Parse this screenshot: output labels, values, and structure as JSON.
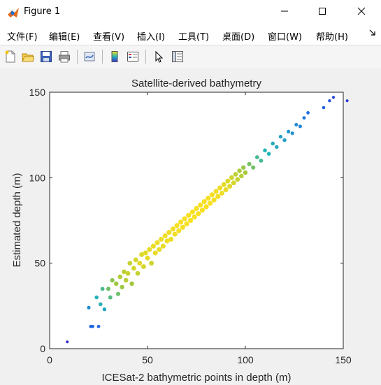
{
  "window": {
    "title": "Figure 1",
    "minimize_icon": "minimize-icon",
    "maximize_icon": "maximize-icon",
    "close_icon": "close-icon"
  },
  "menu": {
    "items": [
      "文件(F)",
      "编辑(E)",
      "查看(V)",
      "插入(I)",
      "工具(T)",
      "桌面(D)",
      "窗口(W)",
      "帮助(H)"
    ],
    "overflow_icon": "dock-arrow-icon"
  },
  "toolbar": {
    "icons": [
      "new-figure-icon",
      "open-file-icon",
      "save-icon",
      "print-icon",
      "link-plot-icon",
      "colorbar-icon",
      "legend-icon",
      "pointer-icon",
      "property-editor-icon"
    ]
  },
  "colors": {
    "low_density": "#3a2fd6",
    "high_density": "#f9e022",
    "axes_background": "#ffffff",
    "figure_background": "#f0f0f0"
  },
  "chart_data": {
    "type": "scatter",
    "title": "Satellite-derived bathymetry",
    "xlabel": "ICESat-2 bathymetric points in depth (m)",
    "ylabel": "Estimated depth (m)",
    "xlim": [
      0,
      150
    ],
    "ylim": [
      0,
      150
    ],
    "xticks": [
      0,
      50,
      100,
      150
    ],
    "yticks": [
      0,
      50,
      100,
      150
    ],
    "grid": false,
    "colormap": "parula (density-colored)",
    "points": [
      [
        9,
        4
      ],
      [
        20,
        24
      ],
      [
        21,
        13
      ],
      [
        22,
        13
      ],
      [
        24,
        30
      ],
      [
        25,
        13
      ],
      [
        26,
        26
      ],
      [
        27,
        35
      ],
      [
        28,
        23
      ],
      [
        30,
        35
      ],
      [
        31,
        30
      ],
      [
        32,
        40
      ],
      [
        34,
        38
      ],
      [
        35,
        32
      ],
      [
        36,
        42
      ],
      [
        37,
        36
      ],
      [
        38,
        45
      ],
      [
        39,
        40
      ],
      [
        40,
        44
      ],
      [
        41,
        50
      ],
      [
        42,
        38
      ],
      [
        43,
        47
      ],
      [
        44,
        52
      ],
      [
        45,
        44
      ],
      [
        46,
        50
      ],
      [
        47,
        55
      ],
      [
        48,
        48
      ],
      [
        49,
        56
      ],
      [
        50,
        53
      ],
      [
        51,
        58
      ],
      [
        52,
        50
      ],
      [
        53,
        60
      ],
      [
        54,
        56
      ],
      [
        55,
        62
      ],
      [
        56,
        58
      ],
      [
        57,
        64
      ],
      [
        58,
        60
      ],
      [
        59,
        66
      ],
      [
        60,
        63
      ],
      [
        61,
        68
      ],
      [
        62,
        64
      ],
      [
        63,
        70
      ],
      [
        64,
        67
      ],
      [
        65,
        72
      ],
      [
        66,
        69
      ],
      [
        67,
        74
      ],
      [
        68,
        71
      ],
      [
        69,
        76
      ],
      [
        70,
        73
      ],
      [
        71,
        78
      ],
      [
        72,
        75
      ],
      [
        73,
        80
      ],
      [
        74,
        77
      ],
      [
        75,
        82
      ],
      [
        76,
        79
      ],
      [
        77,
        84
      ],
      [
        78,
        81
      ],
      [
        79,
        86
      ],
      [
        80,
        83
      ],
      [
        81,
        88
      ],
      [
        82,
        85
      ],
      [
        83,
        90
      ],
      [
        84,
        87
      ],
      [
        85,
        92
      ],
      [
        86,
        89
      ],
      [
        87,
        94
      ],
      [
        88,
        91
      ],
      [
        89,
        96
      ],
      [
        90,
        93
      ],
      [
        91,
        98
      ],
      [
        92,
        95
      ],
      [
        93,
        100
      ],
      [
        94,
        97
      ],
      [
        95,
        102
      ],
      [
        96,
        99
      ],
      [
        97,
        104
      ],
      [
        98,
        101
      ],
      [
        99,
        106
      ],
      [
        100,
        103
      ],
      [
        102,
        108
      ],
      [
        104,
        106
      ],
      [
        106,
        112
      ],
      [
        108,
        110
      ],
      [
        110,
        116
      ],
      [
        112,
        114
      ],
      [
        114,
        120
      ],
      [
        116,
        118
      ],
      [
        118,
        124
      ],
      [
        120,
        122
      ],
      [
        122,
        127
      ],
      [
        124,
        126
      ],
      [
        126,
        131
      ],
      [
        128,
        130
      ],
      [
        130,
        135
      ],
      [
        132,
        138
      ],
      [
        140,
        141
      ],
      [
        143,
        145
      ],
      [
        145,
        147
      ],
      [
        152,
        145
      ]
    ]
  }
}
